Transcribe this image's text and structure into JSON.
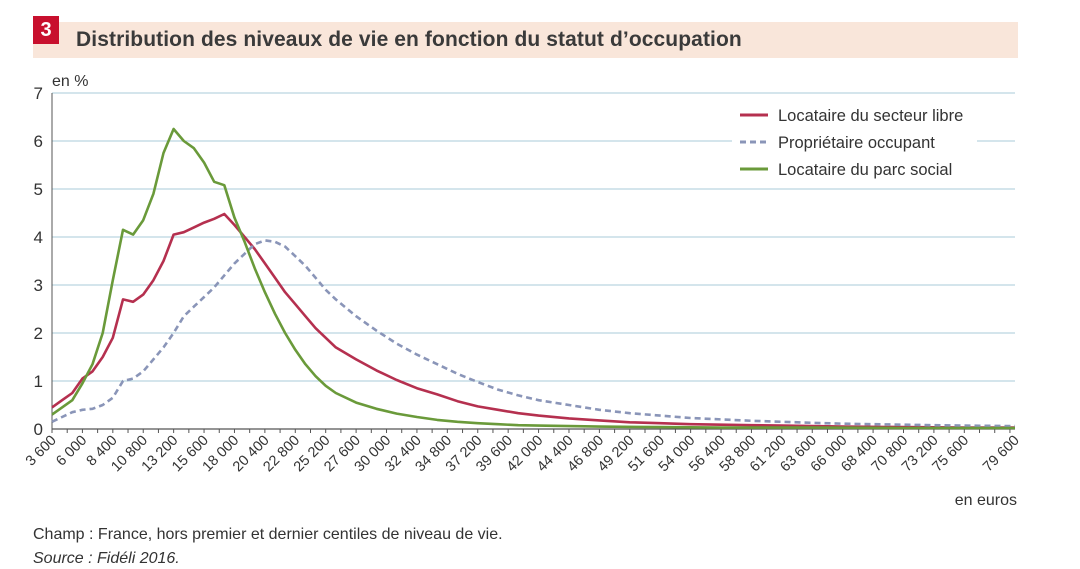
{
  "figure": {
    "number": "3",
    "title": "Distribution des niveaux de vie en fonction du statut d’occupation",
    "champ": "Champ : France, hors premier et dernier centiles de niveau de vie.",
    "source": "Source : Fidéli 2016."
  },
  "chart_data": {
    "type": "line",
    "ylabel": "en %",
    "xlabel": "en euros",
    "ylim": [
      0,
      7
    ],
    "yticks": [
      "0",
      "1",
      "2",
      "3",
      "4",
      "5",
      "6",
      "7"
    ],
    "xlim": [
      3600,
      79600
    ],
    "xticks": [
      "3 600",
      "6 000",
      "8 400",
      "10 800",
      "13 200",
      "15 600",
      "18 000",
      "20 400",
      "22 800",
      "25 200",
      "27 600",
      "30 000",
      "32 400",
      "34 800",
      "37 200",
      "39 600",
      "42 000",
      "44 400",
      "46 800",
      "49 200",
      "51 600",
      "54 000",
      "56 400",
      "58 800",
      "61 200",
      "63 600",
      "66 000",
      "68 400",
      "70 800",
      "73 200",
      "75 600",
      "79 600"
    ],
    "grid": true,
    "legend_position": "top-right",
    "series": [
      {
        "name": "Locataire du secteur libre",
        "color": "#b5304f",
        "style": "solid",
        "points": [
          [
            3600,
            0.45
          ],
          [
            4400,
            0.6
          ],
          [
            5200,
            0.75
          ],
          [
            6000,
            1.05
          ],
          [
            6800,
            1.2
          ],
          [
            7600,
            1.5
          ],
          [
            8400,
            1.9
          ],
          [
            9200,
            2.7
          ],
          [
            10000,
            2.65
          ],
          [
            10800,
            2.8
          ],
          [
            11600,
            3.1
          ],
          [
            12400,
            3.5
          ],
          [
            13200,
            4.05
          ],
          [
            14000,
            4.1
          ],
          [
            14800,
            4.2
          ],
          [
            15600,
            4.3
          ],
          [
            16400,
            4.38
          ],
          [
            17200,
            4.48
          ],
          [
            18000,
            4.25
          ],
          [
            18800,
            4.0
          ],
          [
            19600,
            3.75
          ],
          [
            20400,
            3.45
          ],
          [
            21200,
            3.15
          ],
          [
            22000,
            2.85
          ],
          [
            22800,
            2.6
          ],
          [
            23600,
            2.35
          ],
          [
            24400,
            2.1
          ],
          [
            25200,
            1.9
          ],
          [
            26000,
            1.7
          ],
          [
            27600,
            1.45
          ],
          [
            29200,
            1.22
          ],
          [
            30800,
            1.02
          ],
          [
            32400,
            0.85
          ],
          [
            34000,
            0.72
          ],
          [
            35600,
            0.58
          ],
          [
            37200,
            0.47
          ],
          [
            38800,
            0.4
          ],
          [
            40400,
            0.33
          ],
          [
            42000,
            0.28
          ],
          [
            44400,
            0.22
          ],
          [
            46800,
            0.18
          ],
          [
            49200,
            0.14
          ],
          [
            51600,
            0.12
          ],
          [
            54000,
            0.1
          ],
          [
            56400,
            0.09
          ],
          [
            58800,
            0.08
          ],
          [
            61200,
            0.07
          ],
          [
            63600,
            0.06
          ],
          [
            66000,
            0.05
          ],
          [
            70800,
            0.04
          ],
          [
            75600,
            0.03
          ],
          [
            79600,
            0.03
          ]
        ]
      },
      {
        "name": "Propriétaire occupant",
        "color": "#8a95b8",
        "style": "dashed",
        "points": [
          [
            3600,
            0.15
          ],
          [
            4400,
            0.25
          ],
          [
            5200,
            0.35
          ],
          [
            6000,
            0.4
          ],
          [
            6800,
            0.42
          ],
          [
            7600,
            0.5
          ],
          [
            8400,
            0.65
          ],
          [
            9200,
            1.0
          ],
          [
            10000,
            1.05
          ],
          [
            10800,
            1.2
          ],
          [
            11600,
            1.45
          ],
          [
            12400,
            1.7
          ],
          [
            13200,
            2.0
          ],
          [
            14000,
            2.35
          ],
          [
            14800,
            2.55
          ],
          [
            15600,
            2.75
          ],
          [
            16400,
            2.95
          ],
          [
            17200,
            3.2
          ],
          [
            18000,
            3.45
          ],
          [
            18800,
            3.65
          ],
          [
            19600,
            3.85
          ],
          [
            20400,
            3.93
          ],
          [
            21200,
            3.9
          ],
          [
            22000,
            3.8
          ],
          [
            22800,
            3.6
          ],
          [
            23600,
            3.4
          ],
          [
            24400,
            3.15
          ],
          [
            25200,
            2.9
          ],
          [
            26000,
            2.7
          ],
          [
            27600,
            2.35
          ],
          [
            29200,
            2.05
          ],
          [
            30800,
            1.78
          ],
          [
            32400,
            1.55
          ],
          [
            34000,
            1.35
          ],
          [
            35600,
            1.15
          ],
          [
            37200,
            0.98
          ],
          [
            38800,
            0.82
          ],
          [
            40400,
            0.7
          ],
          [
            42000,
            0.6
          ],
          [
            44400,
            0.5
          ],
          [
            46800,
            0.4
          ],
          [
            49200,
            0.33
          ],
          [
            51600,
            0.28
          ],
          [
            54000,
            0.23
          ],
          [
            56400,
            0.2
          ],
          [
            58800,
            0.17
          ],
          [
            61200,
            0.15
          ],
          [
            63600,
            0.13
          ],
          [
            66000,
            0.11
          ],
          [
            68400,
            0.1
          ],
          [
            70800,
            0.09
          ],
          [
            73200,
            0.08
          ],
          [
            75600,
            0.07
          ],
          [
            79600,
            0.06
          ]
        ]
      },
      {
        "name": "Locataire du parc social",
        "color": "#6a9a3a",
        "style": "solid",
        "points": [
          [
            3600,
            0.3
          ],
          [
            4400,
            0.45
          ],
          [
            5200,
            0.6
          ],
          [
            6000,
            0.95
          ],
          [
            6800,
            1.35
          ],
          [
            7600,
            2.0
          ],
          [
            8400,
            3.1
          ],
          [
            9200,
            4.15
          ],
          [
            10000,
            4.05
          ],
          [
            10800,
            4.35
          ],
          [
            11600,
            4.9
          ],
          [
            12400,
            5.75
          ],
          [
            13200,
            6.25
          ],
          [
            14000,
            6.0
          ],
          [
            14800,
            5.85
          ],
          [
            15600,
            5.55
          ],
          [
            16400,
            5.15
          ],
          [
            17200,
            5.08
          ],
          [
            18000,
            4.4
          ],
          [
            18800,
            3.9
          ],
          [
            19600,
            3.35
          ],
          [
            20400,
            2.85
          ],
          [
            21200,
            2.4
          ],
          [
            22000,
            2.0
          ],
          [
            22800,
            1.65
          ],
          [
            23600,
            1.35
          ],
          [
            24400,
            1.1
          ],
          [
            25200,
            0.9
          ],
          [
            26000,
            0.75
          ],
          [
            27600,
            0.55
          ],
          [
            29200,
            0.42
          ],
          [
            30800,
            0.32
          ],
          [
            32400,
            0.25
          ],
          [
            34000,
            0.19
          ],
          [
            35600,
            0.15
          ],
          [
            37200,
            0.12
          ],
          [
            38800,
            0.1
          ],
          [
            40400,
            0.08
          ],
          [
            42000,
            0.07
          ],
          [
            44400,
            0.06
          ],
          [
            46800,
            0.05
          ],
          [
            51600,
            0.04
          ],
          [
            56400,
            0.03
          ],
          [
            63600,
            0.03
          ],
          [
            70800,
            0.02
          ],
          [
            79600,
            0.02
          ]
        ]
      }
    ]
  }
}
